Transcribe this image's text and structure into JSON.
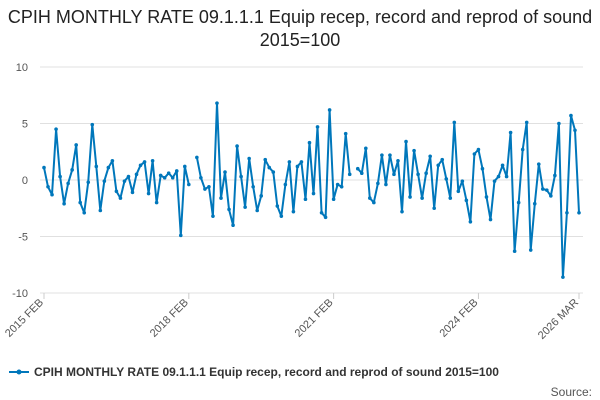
{
  "chart_data": {
    "type": "line",
    "title": "CPIH MONTHLY RATE 09.1.1.1 Equip recep, record and reprod of sound 2015=100",
    "xlabel": "",
    "ylabel": "",
    "x_range": [
      "2015 FEB",
      "2026 MAR"
    ],
    "x_ticks": [
      "2015 FEB",
      "2018 FEB",
      "2021 FEB",
      "2024 FEB",
      "2026 MAR"
    ],
    "ylim": [
      -10,
      10
    ],
    "y_ticks": [
      10,
      5,
      0,
      -5,
      -10
    ],
    "grid": true,
    "legend_position": "bottom",
    "color": "#0077bb",
    "series": [
      {
        "name": "CPIH MONTHLY RATE 09.1.1.1 Equip recep, record and reprod of sound 2015=100",
        "values": [
          1.1,
          -0.6,
          -1.3,
          4.5,
          0.3,
          -2.1,
          -0.3,
          0.9,
          3.1,
          -2.0,
          -2.9,
          -0.2,
          4.9,
          1.2,
          -2.7,
          -0.1,
          1.1,
          1.7,
          -1.0,
          -1.6,
          -0.1,
          0.3,
          -1.1,
          0.5,
          1.3,
          1.6,
          -1.2,
          1.7,
          -2.0,
          0.4,
          0.2,
          0.6,
          0.2,
          0.8,
          -4.9,
          1.2,
          -0.4,
          null,
          2.0,
          0.2,
          -0.8,
          -0.6,
          -3.2,
          6.8,
          -1.6,
          0.7,
          -2.6,
          -4.0,
          3.0,
          0.3,
          -2.4,
          1.9,
          -0.6,
          -2.7,
          -1.4,
          1.8,
          1.1,
          0.7,
          -2.3,
          -3.2,
          -0.4,
          1.6,
          -2.8,
          1.2,
          1.6,
          -1.7,
          3.3,
          -1.2,
          4.7,
          -2.9,
          -3.3,
          6.2,
          -1.7,
          -0.4,
          -0.6,
          4.1,
          0.5,
          null,
          1.0,
          0.6,
          2.8,
          -1.6,
          -2.0,
          -0.3,
          2.2,
          -0.4,
          2.2,
          0.5,
          1.7,
          -2.8,
          3.4,
          -1.5,
          2.6,
          0.5,
          -1.6,
          0.6,
          2.1,
          -2.5,
          1.3,
          1.8,
          0.1,
          -1.6,
          5.1,
          -1.0,
          -0.1,
          -1.8,
          -3.7,
          2.3,
          2.7,
          1.0,
          -1.5,
          -3.5,
          -0.1,
          0.3,
          1.3,
          0.3,
          4.2,
          -6.3,
          -2.0,
          2.7,
          5.1,
          -6.2,
          -2.1,
          1.4,
          -0.8,
          -0.9,
          -1.4,
          0.4,
          5.0,
          -8.6,
          -2.9,
          5.7,
          4.4,
          -2.9
        ]
      }
    ]
  },
  "source_label": "Source:"
}
